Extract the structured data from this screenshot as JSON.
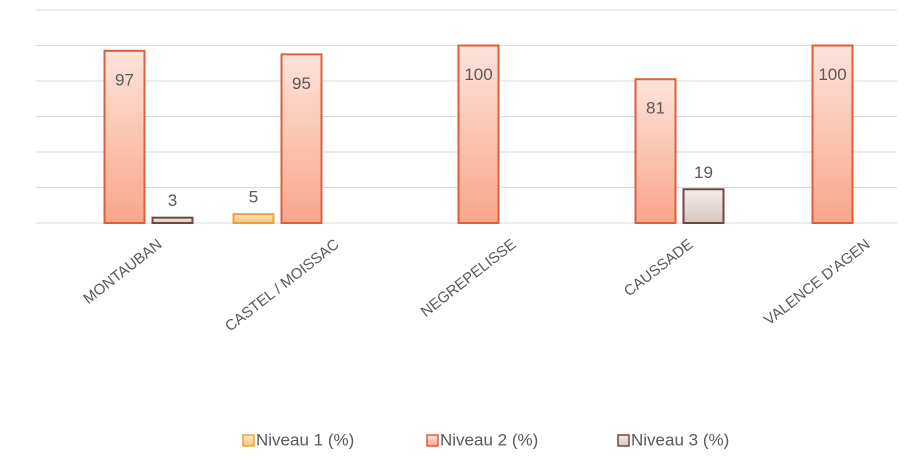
{
  "chart_data": {
    "type": "bar",
    "categories": [
      "MONTAUBAN",
      "CASTEL / MOISSAC",
      "NEGREPELISSE",
      "CAUSSADE",
      "VALENCE D'AGEN"
    ],
    "series": [
      {
        "name": "Niveau 1 (%)",
        "color": "#e8a33b",
        "values": [
          null,
          5,
          null,
          null,
          null
        ]
      },
      {
        "name": "Niveau 2 (%)",
        "color": "#d9603b",
        "values": [
          97,
          95,
          100,
          81,
          100
        ]
      },
      {
        "name": "Niveau 3 (%)",
        "color": "#6b4a40",
        "values": [
          3,
          null,
          null,
          19,
          null
        ]
      }
    ],
    "ylim": [
      0,
      120
    ],
    "yticks": [
      0,
      20,
      40,
      60,
      80,
      100,
      120
    ],
    "grid": true,
    "legend": "bottom"
  }
}
